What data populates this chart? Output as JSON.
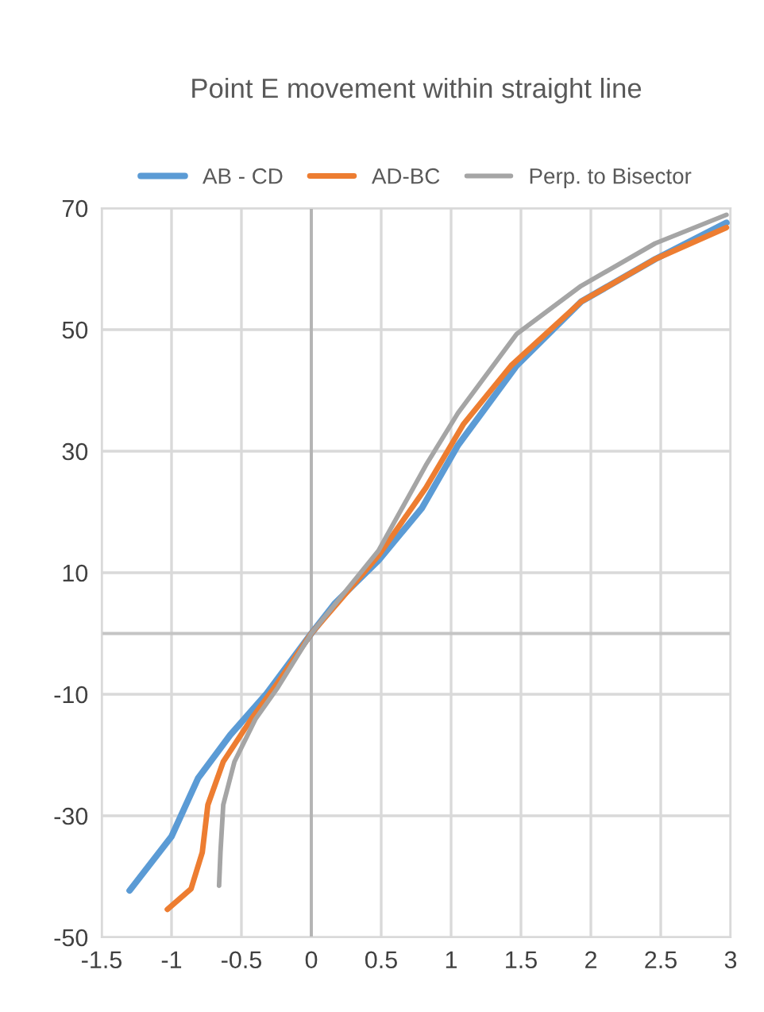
{
  "chart_data": {
    "type": "line",
    "title": "Point E movement within straight line",
    "series": [
      {
        "name": "AB - CD",
        "color": "#5b9bd5",
        "x": [
          -1.3,
          -1.0,
          -0.81,
          -0.58,
          -0.32,
          0,
          0.17,
          0.48,
          0.79,
          1.05,
          1.47,
          1.93,
          2.46,
          2.97
        ],
        "values": [
          -42.3,
          -33.4,
          -23.8,
          -16.7,
          -9.9,
          0,
          5,
          12,
          20.6,
          31,
          44.1,
          54.6,
          61.6,
          67.6
        ]
      },
      {
        "name": "AD-BC",
        "color": "#ed7d31",
        "x": [
          -1.03,
          -0.86,
          -0.78,
          -0.74,
          -0.63,
          -0.43,
          -0.24,
          0,
          0.48,
          0.82,
          1.09,
          1.43,
          1.93,
          2.46,
          2.97
        ],
        "values": [
          -45.4,
          -42,
          -36,
          -28.2,
          -21.1,
          -14.1,
          -8.1,
          0,
          12.8,
          24,
          34.5,
          44.1,
          54.6,
          61.6,
          66.8
        ]
      },
      {
        "name": "Perp. to Bisector",
        "color": "#a5a5a5",
        "x": [
          -0.66,
          -0.65,
          -0.63,
          -0.55,
          -0.4,
          -0.24,
          0,
          0.48,
          0.82,
          1.05,
          1.47,
          1.93,
          2.46,
          2.97
        ],
        "values": [
          -41.5,
          -36,
          -28.2,
          -21.1,
          -14.1,
          -8.9,
          0,
          13.6,
          27.7,
          36.3,
          49.3,
          57.2,
          64.2,
          68.9
        ]
      }
    ],
    "xlim": [
      -1.5,
      3
    ],
    "xticks": [
      -1.5,
      -1,
      -0.5,
      0,
      0.5,
      1,
      1.5,
      2,
      2.5,
      3
    ],
    "ylim": [
      -50,
      70
    ],
    "yticks": [
      -50,
      -30,
      -10,
      10,
      30,
      50,
      70
    ],
    "ref_lines": [
      {
        "axis": "x",
        "value": 0,
        "color": "#b4b4b4"
      },
      {
        "axis": "y",
        "value": 0,
        "color": "#c4c4c4"
      }
    ],
    "grid": true,
    "legend": "top",
    "marker": "none",
    "line_style": "solid"
  }
}
